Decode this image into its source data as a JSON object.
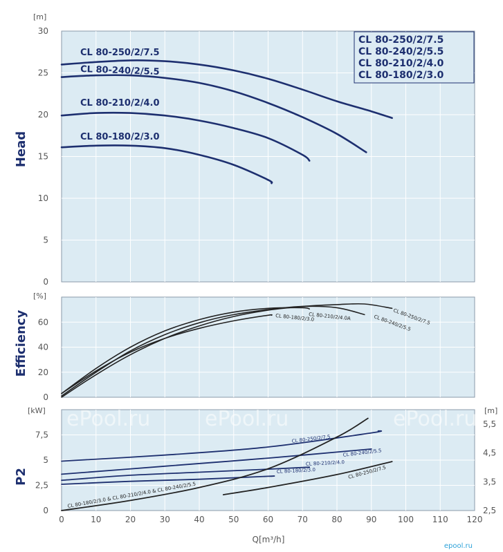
{
  "chart_data": [
    {
      "type": "line",
      "ylabel": "Head",
      "yunit": "[m]",
      "ylim": [
        0,
        30
      ],
      "yticks": [
        "0",
        "5",
        "10",
        "15",
        "20",
        "25",
        "30"
      ],
      "xlim": [
        0,
        120
      ],
      "grid": true,
      "legend": [
        "CL 80-250/2/7.5",
        "CL 80-240/2/5.5",
        "CL 80-210/2/4.0",
        "CL 80-180/2/3.0"
      ],
      "series": [
        {
          "name": "CL 80-250/2/7.5",
          "x": [
            0,
            10,
            20,
            30,
            40,
            50,
            60,
            70,
            80,
            90,
            96
          ],
          "y": [
            26,
            26.3,
            26.5,
            26.4,
            26,
            25.3,
            24.3,
            23,
            21.6,
            20.4,
            19.6
          ]
        },
        {
          "name": "CL 80-240/2/5.5",
          "x": [
            0,
            10,
            20,
            30,
            40,
            50,
            60,
            70,
            80,
            88.5
          ],
          "y": [
            24.5,
            24.7,
            24.7,
            24.4,
            23.8,
            22.8,
            21.4,
            19.7,
            17.7,
            15.5
          ]
        },
        {
          "name": "CL 80-210/2/4.0",
          "x": [
            0,
            10,
            20,
            30,
            40,
            50,
            60,
            70,
            72
          ],
          "y": [
            19.9,
            20.2,
            20.2,
            19.9,
            19.3,
            18.4,
            17.2,
            15.2,
            14.5
          ]
        },
        {
          "name": "CL 80-180/2/3.0",
          "x": [
            0,
            10,
            20,
            30,
            40,
            50,
            60,
            61
          ],
          "y": [
            16.1,
            16.3,
            16.3,
            16,
            15.2,
            14,
            12.2,
            11.8
          ]
        }
      ]
    },
    {
      "type": "line",
      "ylabel": "Efficiency",
      "yunit": "[%]",
      "ylim": [
        0,
        80
      ],
      "yticks": [
        "0",
        "20",
        "40",
        "60"
      ],
      "xlim": [
        0,
        120
      ],
      "grid": true,
      "series": [
        {
          "name": "CL 80-250/2/7.5",
          "x": [
            0,
            10,
            20,
            30,
            40,
            50,
            60,
            70,
            80,
            88,
            96
          ],
          "y": [
            0,
            18,
            34,
            47,
            57,
            64.5,
            69.5,
            72.5,
            74,
            74.5,
            71
          ]
        },
        {
          "name": "CL 80-240/2/5.5",
          "x": [
            0,
            10,
            20,
            30,
            40,
            50,
            60,
            70,
            80,
            88
          ],
          "y": [
            1,
            20,
            37,
            50,
            59.5,
            66,
            70,
            72.5,
            71.5,
            66
          ]
        },
        {
          "name": "CL 80-210/2/4.0A",
          "x": [
            0,
            10,
            20,
            30,
            40,
            50,
            60,
            70,
            72
          ],
          "y": [
            3,
            23,
            40,
            53,
            62,
            68,
            71,
            71.5,
            70.5
          ]
        },
        {
          "name": "CL 80-180/2/3.0",
          "x": [
            0,
            10,
            20,
            30,
            40,
            50,
            60,
            61
          ],
          "y": [
            3,
            21,
            36,
            47,
            55,
            61,
            65.5,
            65.5
          ]
        }
      ]
    },
    {
      "type": "line",
      "ylabel": "P2",
      "yunit": "[kW]",
      "ylim": [
        0,
        10
      ],
      "yticks": [
        "0",
        "2,5",
        "5",
        "7,5"
      ],
      "y2unit": "[m]",
      "y2lim": [
        2.5,
        6.0
      ],
      "y2ticks": [
        "2,5",
        "3,5",
        "4,5",
        "5,5"
      ],
      "xlabel": "Q[m³/h]",
      "xlim": [
        0,
        120
      ],
      "xticks": [
        "0",
        "10",
        "20",
        "30",
        "40",
        "50",
        "60",
        "70",
        "80",
        "90",
        "100",
        "110",
        "120"
      ],
      "grid": true,
      "series": [
        {
          "name": "CL 80-250/2/7.5",
          "axis": "left",
          "x": [
            0,
            30,
            60,
            90,
            92
          ],
          "y": [
            4.9,
            5.5,
            6.3,
            7.7,
            7.9
          ]
        },
        {
          "name": "CL 80-240/2/5.5",
          "axis": "left",
          "x": [
            0,
            30,
            60,
            90
          ],
          "y": [
            3.6,
            4.4,
            5.2,
            6.1
          ]
        },
        {
          "name": "CL 80-210/2/4.0",
          "axis": "left",
          "x": [
            0,
            20,
            40,
            60,
            72
          ],
          "y": [
            3.0,
            3.5,
            3.8,
            4.1,
            4.3
          ]
        },
        {
          "name": "CL 80-180/2/3.0",
          "axis": "left",
          "x": [
            0,
            20,
            40,
            60,
            61
          ],
          "y": [
            2.6,
            2.9,
            3.1,
            3.4,
            3.4
          ]
        },
        {
          "name": "CL 80-180/2/3.0 & CL 80-210/2/4.0 & CL 80-240/2/5.5",
          "axis": "right",
          "x": [
            0,
            20,
            40,
            60,
            80,
            89
          ],
          "y": [
            2.5,
            2.85,
            3.3,
            3.95,
            5.05,
            5.7
          ]
        },
        {
          "name": "CL 80-250/2/7.5",
          "axis": "right",
          "x": [
            47,
            60,
            80,
            96
          ],
          "y": [
            3.05,
            3.3,
            3.75,
            4.2
          ]
        }
      ]
    }
  ],
  "watermark": "ePool.ru",
  "brand": "epool.ru",
  "colors": {
    "plot_bg": "#dcebf3",
    "curve": "#1d2f6f",
    "curve_dark": "#222222",
    "grid": "#ffffff"
  }
}
